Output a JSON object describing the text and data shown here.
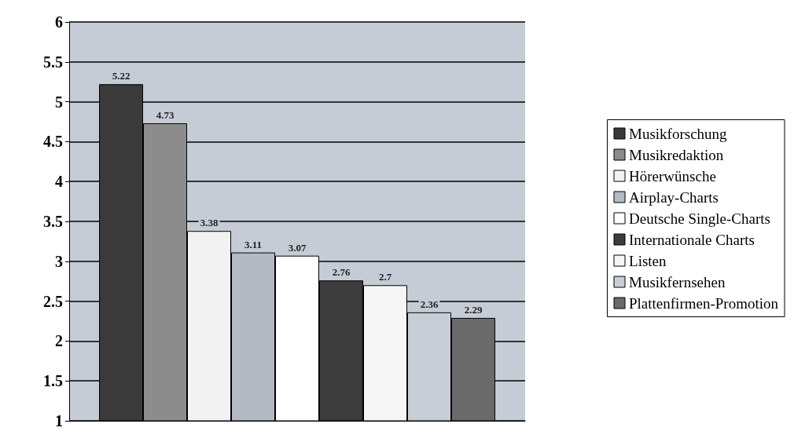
{
  "chart_data": {
    "type": "bar",
    "categories": [
      null
    ],
    "series": [
      {
        "name": "Musikforschung",
        "color": "#3a3a3a",
        "values": [
          5.22
        ]
      },
      {
        "name": "Musikredaktion",
        "color": "#8c8c8c",
        "values": [
          4.73
        ]
      },
      {
        "name": "Hörerwünsche",
        "color": "#f2f2f2",
        "values": [
          3.38
        ]
      },
      {
        "name": "Airplay-Charts",
        "color": "#b4bac4",
        "values": [
          3.11
        ]
      },
      {
        "name": "Deutsche Single-Charts",
        "color": "#ffffff",
        "values": [
          3.07
        ]
      },
      {
        "name": "Internationale Charts",
        "color": "#3c3c3c",
        "values": [
          2.76
        ]
      },
      {
        "name": "Listen",
        "color": "#f6f6f6",
        "values": [
          2.7
        ]
      },
      {
        "name": "Musikfernsehen",
        "color": "#c9cdd5",
        "values": [
          2.36
        ]
      },
      {
        "name": "Plattenfirmen-Promotion",
        "color": "#6a6a6a",
        "values": [
          2.29
        ]
      }
    ],
    "ylim": [
      1,
      6
    ],
    "yticks": [
      1,
      1.5,
      2,
      2.5,
      3,
      3.5,
      4,
      4.5,
      5,
      5.5,
      6
    ],
    "grid": "y",
    "legend": "right",
    "data_labels": true
  }
}
